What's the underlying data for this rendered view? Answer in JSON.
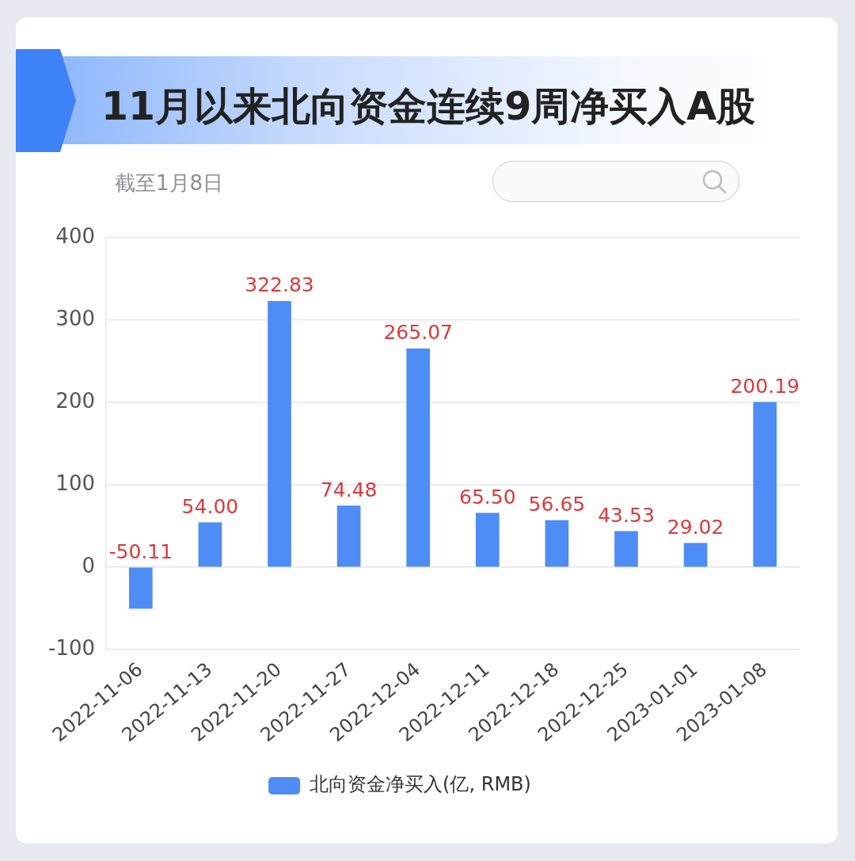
{
  "chart_data": {
    "type": "bar",
    "title": "11月以来北向资金连续9周净买入A股",
    "subtitle": "截至1月8日",
    "categories": [
      "2022-11-06",
      "2022-11-13",
      "2022-11-20",
      "2022-11-27",
      "2022-12-04",
      "2022-12-11",
      "2022-12-18",
      "2022-12-25",
      "2023-01-01",
      "2023-01-08"
    ],
    "series": [
      {
        "name": "北向资金净买入(亿, RMB)",
        "color": "#4e8cf6",
        "values": [
          -50.11,
          54.0,
          322.83,
          74.48,
          265.07,
          65.5,
          56.65,
          43.53,
          29.02,
          200.19
        ],
        "value_labels": [
          "-50.11",
          "54.00",
          "322.83",
          "74.48",
          "265.07",
          "65.50",
          "56.65",
          "43.53",
          "29.02",
          "200.19"
        ]
      }
    ],
    "ylim": [
      -100,
      400
    ],
    "yticks": [
      -100,
      0,
      100,
      200,
      300,
      400
    ],
    "grid": "y",
    "legend": "bottom"
  }
}
